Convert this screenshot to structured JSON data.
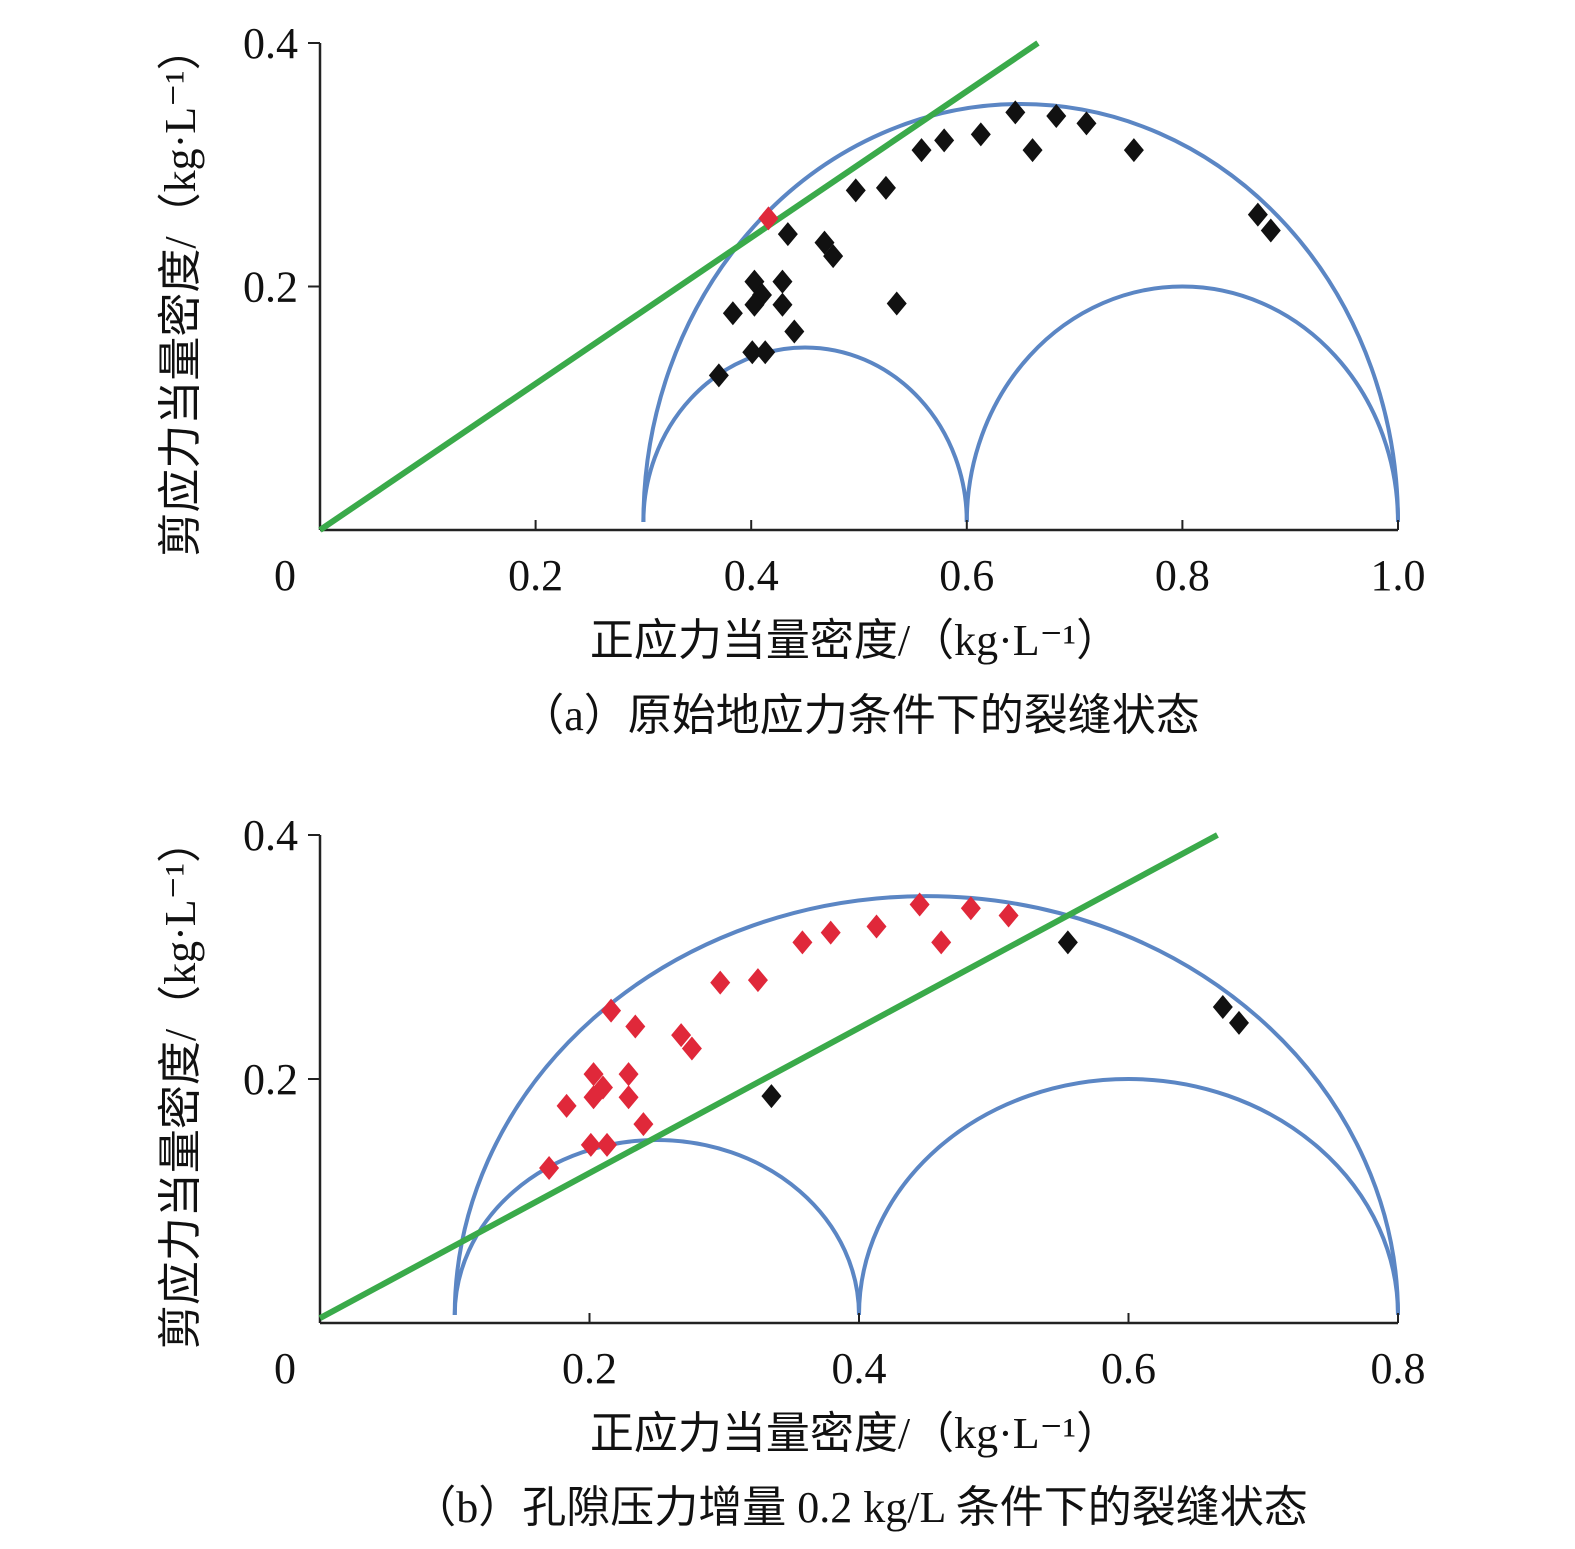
{
  "chart_data": [
    {
      "type": "scatter",
      "title": "",
      "caption": "（a）原始地应力条件下的裂缝状态",
      "xlabel": "正应力当量密度/（kg·L⁻¹）",
      "ylabel": "剪应力当量密度/（kg·L⁻¹）",
      "xlim": [
        0,
        1.0
      ],
      "ylim": [
        0,
        0.4
      ],
      "xticks": [
        {
          "v": 0,
          "label": "0"
        },
        {
          "v": 0.2,
          "label": "0.2"
        },
        {
          "v": 0.4,
          "label": "0.4"
        },
        {
          "v": 0.6,
          "label": "0.6"
        },
        {
          "v": 0.8,
          "label": "0.8"
        },
        {
          "v": 1.0,
          "label": "1.0"
        }
      ],
      "yticks": [
        {
          "v": 0.2,
          "label": "0.2"
        },
        {
          "v": 0.4,
          "label": "0.4"
        }
      ],
      "grid": false,
      "colors": {
        "circle": "#5b86c4",
        "line": "#3aaa4a",
        "stable": "#111111",
        "failed": "#e0283a"
      },
      "mohr_circles": [
        {
          "center": 0.65,
          "radius": 0.35
        },
        {
          "center": 0.45,
          "radius": 0.15
        },
        {
          "center": 0.8,
          "radius": 0.2
        }
      ],
      "failure_line": {
        "x0": 0,
        "y0": 0,
        "x1": 0.666,
        "y1": 0.4
      },
      "points": [
        {
          "x": 0.416,
          "y": 0.256,
          "state": "failed"
        },
        {
          "x": 0.434,
          "y": 0.243,
          "state": "stable"
        },
        {
          "x": 0.468,
          "y": 0.236,
          "state": "stable"
        },
        {
          "x": 0.476,
          "y": 0.225,
          "state": "stable"
        },
        {
          "x": 0.497,
          "y": 0.279,
          "state": "stable"
        },
        {
          "x": 0.525,
          "y": 0.281,
          "state": "stable"
        },
        {
          "x": 0.558,
          "y": 0.312,
          "state": "stable"
        },
        {
          "x": 0.579,
          "y": 0.32,
          "state": "stable"
        },
        {
          "x": 0.613,
          "y": 0.325,
          "state": "stable"
        },
        {
          "x": 0.645,
          "y": 0.343,
          "state": "stable"
        },
        {
          "x": 0.661,
          "y": 0.312,
          "state": "stable"
        },
        {
          "x": 0.683,
          "y": 0.34,
          "state": "stable"
        },
        {
          "x": 0.711,
          "y": 0.334,
          "state": "stable"
        },
        {
          "x": 0.755,
          "y": 0.312,
          "state": "stable"
        },
        {
          "x": 0.87,
          "y": 0.259,
          "state": "stable"
        },
        {
          "x": 0.882,
          "y": 0.246,
          "state": "stable"
        },
        {
          "x": 0.535,
          "y": 0.186,
          "state": "stable"
        },
        {
          "x": 0.403,
          "y": 0.204,
          "state": "stable"
        },
        {
          "x": 0.429,
          "y": 0.204,
          "state": "stable"
        },
        {
          "x": 0.41,
          "y": 0.193,
          "state": "stable"
        },
        {
          "x": 0.403,
          "y": 0.185,
          "state": "stable"
        },
        {
          "x": 0.429,
          "y": 0.185,
          "state": "stable"
        },
        {
          "x": 0.383,
          "y": 0.178,
          "state": "stable"
        },
        {
          "x": 0.44,
          "y": 0.163,
          "state": "stable"
        },
        {
          "x": 0.401,
          "y": 0.146,
          "state": "stable"
        },
        {
          "x": 0.413,
          "y": 0.146,
          "state": "stable"
        },
        {
          "x": 0.37,
          "y": 0.127,
          "state": "stable"
        }
      ]
    },
    {
      "type": "scatter",
      "title": "",
      "caption": "（b）孔隙压力增量 0.2 kg/L 条件下的裂缝状态",
      "xlabel": "正应力当量密度/（kg·L⁻¹）",
      "ylabel": "剪应力当量密度/（kg·L⁻¹）",
      "xlim": [
        0,
        0.8
      ],
      "ylim": [
        0,
        0.4
      ],
      "xticks": [
        {
          "v": 0,
          "label": "0"
        },
        {
          "v": 0.2,
          "label": "0.2"
        },
        {
          "v": 0.4,
          "label": "0.4"
        },
        {
          "v": 0.6,
          "label": "0.6"
        },
        {
          "v": 0.8,
          "label": "0.8"
        }
      ],
      "yticks": [
        {
          "v": 0.2,
          "label": "0.2"
        },
        {
          "v": 0.4,
          "label": "0.4"
        }
      ],
      "grid": false,
      "colors": {
        "circle": "#5b86c4",
        "line": "#3aaa4a",
        "stable": "#111111",
        "failed": "#e0283a"
      },
      "mohr_circles": [
        {
          "center": 0.45,
          "radius": 0.35
        },
        {
          "center": 0.25,
          "radius": 0.15
        },
        {
          "center": 0.6,
          "radius": 0.2
        }
      ],
      "failure_line": {
        "x0": 0,
        "y0": 0.004,
        "x1": 0.666,
        "y1": 0.4
      },
      "points": [
        {
          "x": 0.216,
          "y": 0.256,
          "state": "failed"
        },
        {
          "x": 0.234,
          "y": 0.243,
          "state": "failed"
        },
        {
          "x": 0.268,
          "y": 0.236,
          "state": "failed"
        },
        {
          "x": 0.276,
          "y": 0.225,
          "state": "failed"
        },
        {
          "x": 0.297,
          "y": 0.279,
          "state": "failed"
        },
        {
          "x": 0.325,
          "y": 0.281,
          "state": "failed"
        },
        {
          "x": 0.358,
          "y": 0.312,
          "state": "failed"
        },
        {
          "x": 0.379,
          "y": 0.32,
          "state": "failed"
        },
        {
          "x": 0.413,
          "y": 0.325,
          "state": "failed"
        },
        {
          "x": 0.445,
          "y": 0.343,
          "state": "failed"
        },
        {
          "x": 0.461,
          "y": 0.312,
          "state": "failed"
        },
        {
          "x": 0.483,
          "y": 0.34,
          "state": "failed"
        },
        {
          "x": 0.511,
          "y": 0.334,
          "state": "failed"
        },
        {
          "x": 0.555,
          "y": 0.312,
          "state": "stable"
        },
        {
          "x": 0.67,
          "y": 0.259,
          "state": "stable"
        },
        {
          "x": 0.682,
          "y": 0.246,
          "state": "stable"
        },
        {
          "x": 0.335,
          "y": 0.186,
          "state": "stable"
        },
        {
          "x": 0.203,
          "y": 0.204,
          "state": "failed"
        },
        {
          "x": 0.229,
          "y": 0.204,
          "state": "failed"
        },
        {
          "x": 0.21,
          "y": 0.193,
          "state": "failed"
        },
        {
          "x": 0.203,
          "y": 0.185,
          "state": "failed"
        },
        {
          "x": 0.229,
          "y": 0.185,
          "state": "failed"
        },
        {
          "x": 0.183,
          "y": 0.178,
          "state": "failed"
        },
        {
          "x": 0.24,
          "y": 0.163,
          "state": "failed"
        },
        {
          "x": 0.201,
          "y": 0.146,
          "state": "failed"
        },
        {
          "x": 0.213,
          "y": 0.146,
          "state": "failed"
        },
        {
          "x": 0.17,
          "y": 0.127,
          "state": "failed"
        }
      ]
    }
  ]
}
